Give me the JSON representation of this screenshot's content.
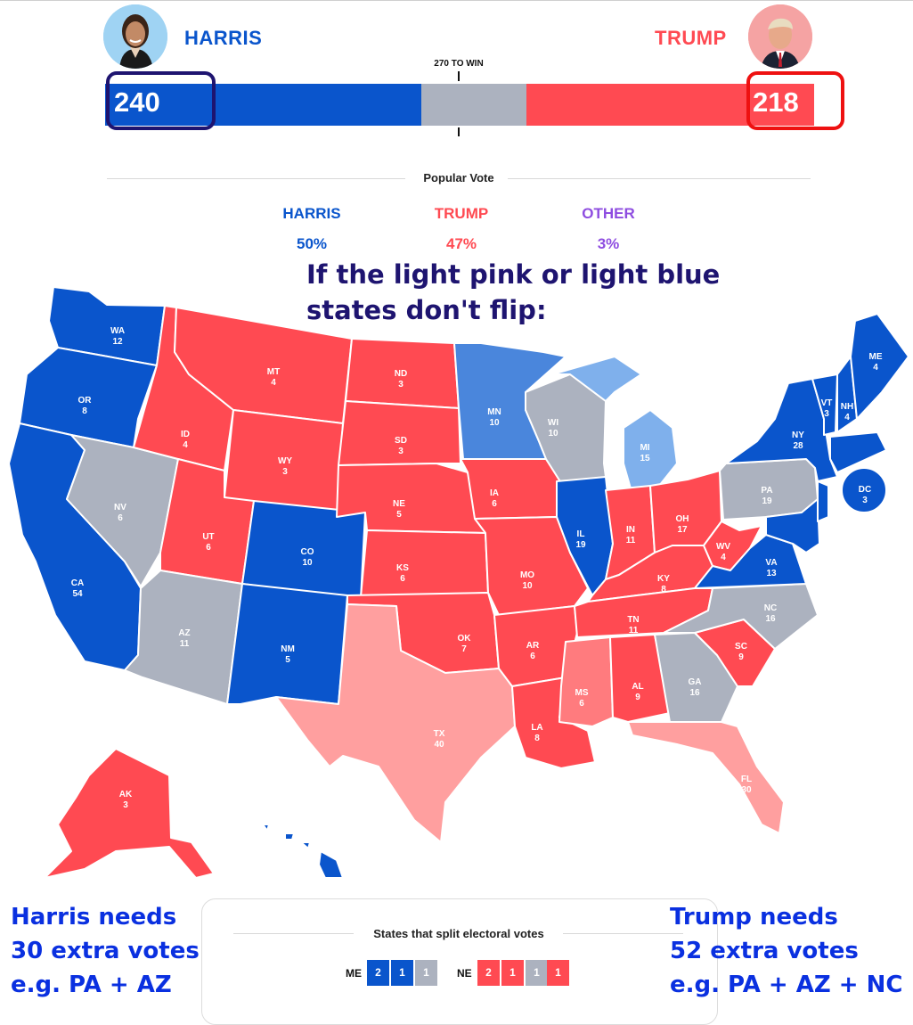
{
  "colors": {
    "harris": "#0a55cc",
    "trump": "#ff4a52",
    "other_purple": "#8e4de0",
    "tossup_gray": "#acb2bf",
    "lean_blue_mid": "#4a86dc",
    "lean_blue_light": "#7fb0ec",
    "lean_red_light": "#ff9f9f",
    "lean_red_mid": "#ff7b7e",
    "annotation_navy": "#1e1470",
    "annotation_blue": "#0a30e0"
  },
  "header": {
    "harris": {
      "name": "HARRIS",
      "electoral_votes": "240",
      "avatar_icon": "harris-portrait"
    },
    "trump": {
      "name": "TRUMP",
      "electoral_votes": "218",
      "avatar_icon": "trump-portrait"
    },
    "win_threshold_label": "270 TO WIN"
  },
  "electoral_bar": {
    "harris": 240,
    "tossup": 80,
    "trump": 218,
    "total": 538
  },
  "popular_vote": {
    "title": "Popular Vote",
    "candidates": [
      {
        "name": "HARRIS",
        "pct": "50%",
        "color": "#0a55cc"
      },
      {
        "name": "TRUMP",
        "pct": "47%",
        "color": "#ff4a52"
      },
      {
        "name": "OTHER",
        "pct": "3%",
        "color": "#8e4de0"
      }
    ]
  },
  "annotation": {
    "line1": "If the light pink or light blue",
    "line2": "states don't flip:"
  },
  "states": {
    "WA": {
      "abbr": "WA",
      "ev": "12",
      "status": "harris"
    },
    "OR": {
      "abbr": "OR",
      "ev": "8",
      "status": "harris"
    },
    "CA": {
      "abbr": "CA",
      "ev": "54",
      "status": "harris"
    },
    "NV": {
      "abbr": "NV",
      "ev": "6",
      "status": "tossup"
    },
    "ID": {
      "abbr": "ID",
      "ev": "4",
      "status": "trump"
    },
    "MT": {
      "abbr": "MT",
      "ev": "4",
      "status": "trump"
    },
    "WY": {
      "abbr": "WY",
      "ev": "3",
      "status": "trump"
    },
    "UT": {
      "abbr": "UT",
      "ev": "6",
      "status": "trump"
    },
    "AZ": {
      "abbr": "AZ",
      "ev": "11",
      "status": "tossup"
    },
    "CO": {
      "abbr": "CO",
      "ev": "10",
      "status": "harris"
    },
    "NM": {
      "abbr": "NM",
      "ev": "5",
      "status": "harris"
    },
    "ND": {
      "abbr": "ND",
      "ev": "3",
      "status": "trump"
    },
    "SD": {
      "abbr": "SD",
      "ev": "3",
      "status": "trump"
    },
    "NE": {
      "abbr": "NE",
      "ev": "5",
      "status": "trump"
    },
    "KS": {
      "abbr": "KS",
      "ev": "6",
      "status": "trump"
    },
    "OK": {
      "abbr": "OK",
      "ev": "7",
      "status": "trump"
    },
    "TX": {
      "abbr": "TX",
      "ev": "40",
      "status": "lean_trump"
    },
    "MN": {
      "abbr": "MN",
      "ev": "10",
      "status": "lean_harris_mid"
    },
    "IA": {
      "abbr": "IA",
      "ev": "6",
      "status": "trump"
    },
    "MO": {
      "abbr": "MO",
      "ev": "10",
      "status": "trump"
    },
    "AR": {
      "abbr": "AR",
      "ev": "6",
      "status": "trump"
    },
    "LA": {
      "abbr": "LA",
      "ev": "8",
      "status": "trump"
    },
    "WI": {
      "abbr": "WI",
      "ev": "10",
      "status": "tossup"
    },
    "IL": {
      "abbr": "IL",
      "ev": "19",
      "status": "harris"
    },
    "MI": {
      "abbr": "MI",
      "ev": "15",
      "status": "lean_harris_light"
    },
    "IN": {
      "abbr": "IN",
      "ev": "11",
      "status": "trump"
    },
    "OH": {
      "abbr": "OH",
      "ev": "17",
      "status": "trump"
    },
    "KY": {
      "abbr": "KY",
      "ev": "8",
      "status": "trump"
    },
    "TN": {
      "abbr": "TN",
      "ev": "11",
      "status": "trump"
    },
    "MS": {
      "abbr": "MS",
      "ev": "6",
      "status": "lean_trump_mid"
    },
    "AL": {
      "abbr": "AL",
      "ev": "9",
      "status": "trump"
    },
    "GA": {
      "abbr": "GA",
      "ev": "16",
      "status": "tossup"
    },
    "FL": {
      "abbr": "FL",
      "ev": "30",
      "status": "lean_trump"
    },
    "SC": {
      "abbr": "SC",
      "ev": "9",
      "status": "trump"
    },
    "NC": {
      "abbr": "NC",
      "ev": "16",
      "status": "tossup"
    },
    "VA": {
      "abbr": "VA",
      "ev": "13",
      "status": "harris"
    },
    "WV": {
      "abbr": "WV",
      "ev": "4",
      "status": "trump"
    },
    "PA": {
      "abbr": "PA",
      "ev": "19",
      "status": "tossup"
    },
    "NY": {
      "abbr": "NY",
      "ev": "28",
      "status": "harris"
    },
    "VT": {
      "abbr": "VT",
      "ev": "3",
      "status": "harris"
    },
    "NH": {
      "abbr": "NH",
      "ev": "4",
      "status": "harris"
    },
    "ME": {
      "abbr": "ME",
      "ev": "4",
      "status": "harris"
    },
    "DC": {
      "abbr": "DC",
      "ev": "3",
      "status": "harris"
    },
    "AK": {
      "abbr": "AK",
      "ev": "3",
      "status": "trump"
    },
    "HI": {
      "abbr": "",
      "ev": "",
      "status": "harris"
    }
  },
  "split_states": {
    "title": "States that split electoral votes",
    "ME": {
      "label": "ME",
      "cells": [
        "2",
        "1",
        "1"
      ]
    },
    "NE": {
      "label": "NE",
      "cells": [
        "2",
        "1",
        "1",
        "1"
      ]
    }
  },
  "harris_needs": {
    "line1": "Harris needs",
    "line2": "30 extra votes",
    "line3": "e.g. PA + AZ"
  },
  "trump_needs": {
    "line1": "Trump needs",
    "line2": "52 extra votes",
    "line3": "e.g. PA + AZ + NC"
  }
}
